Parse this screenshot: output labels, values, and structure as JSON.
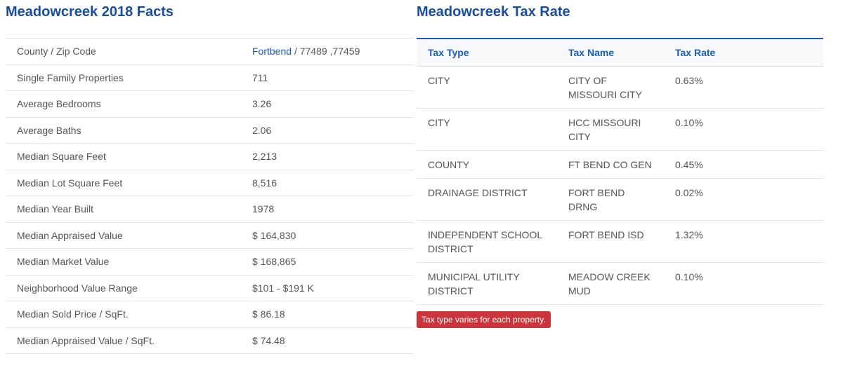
{
  "facts": {
    "title": "Meadowcreek 2018 Facts",
    "rows": [
      {
        "label": "County / Zip Code",
        "link": "Fortbend",
        "value": "/ 77489 ,77459"
      },
      {
        "label": "Single Family Properties",
        "value": "711"
      },
      {
        "label": "Average Bedrooms",
        "value": "3.26"
      },
      {
        "label": "Average Baths",
        "value": "2.06"
      },
      {
        "label": "Median Square Feet",
        "value": "2,213"
      },
      {
        "label": "Median Lot Square Feet",
        "value": "8,516"
      },
      {
        "label": "Median Year Built",
        "value": "1978"
      },
      {
        "label": "Median Appraised Value",
        "value": "$ 164,830"
      },
      {
        "label": "Median Market Value",
        "value": "$ 168,865"
      },
      {
        "label": "Neighborhood Value Range",
        "value": "$101 - $191 K"
      },
      {
        "label": "Median Sold Price / SqFt.",
        "value": "$ 86.18"
      },
      {
        "label": "Median Appraised Value / SqFt.",
        "value": "$ 74.48"
      }
    ]
  },
  "tax": {
    "title": "Meadowcreek Tax Rate",
    "headers": [
      "Tax Type",
      "Tax Name",
      "Tax Rate"
    ],
    "rows": [
      [
        "CITY",
        "CITY OF MISSOURI CITY",
        "0.63%"
      ],
      [
        "CITY",
        "HCC MISSOURI CITY",
        "0.10%"
      ],
      [
        "COUNTY",
        "FT BEND CO GEN",
        "0.45%"
      ],
      [
        "DRAINAGE DISTRICT",
        "FORT BEND DRNG",
        "0.02%"
      ],
      [
        "INDEPENDENT SCHOOL DISTRICT",
        "FORT BEND ISD",
        "1.32%"
      ],
      [
        "MUNICIPAL UTILITY DISTRICT",
        "MEADOW CREEK MUD",
        "0.10%"
      ]
    ],
    "note": "Tax type varies for each property."
  }
}
